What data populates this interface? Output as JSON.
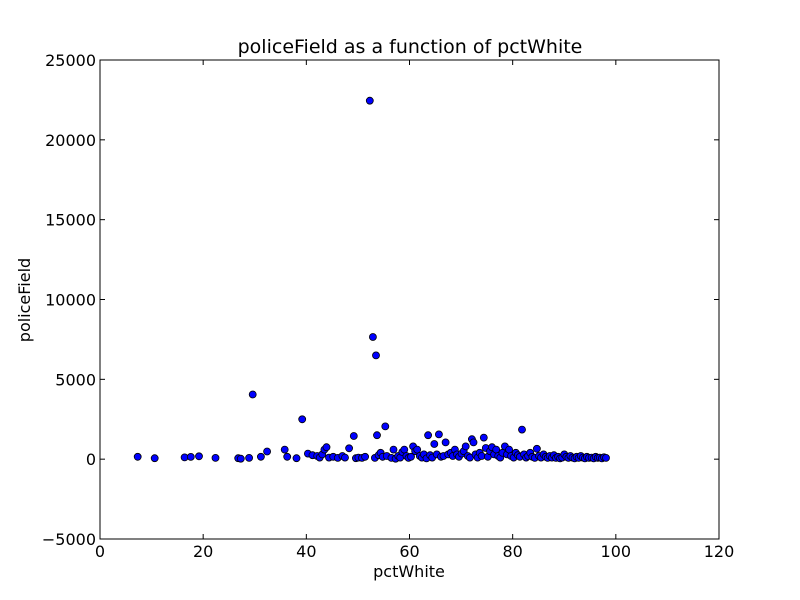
{
  "chart_data": {
    "type": "scatter",
    "title": "policeField as a function of pctWhite",
    "xlabel": "pctWhite",
    "ylabel": "policeField",
    "xlim": [
      0,
      120
    ],
    "ylim": [
      -5000,
      25000
    ],
    "xticks": [
      0,
      20,
      40,
      60,
      80,
      100,
      120
    ],
    "yticks": [
      -5000,
      0,
      5000,
      10000,
      15000,
      20000,
      25000
    ],
    "grid": false,
    "marker_color": "#0000ff",
    "marker_edge_color": "#000000",
    "series": [
      {
        "points": [
          [
            7.3,
            150
          ],
          [
            10.6,
            60
          ],
          [
            16.4,
            110
          ],
          [
            17.6,
            140
          ],
          [
            19.2,
            180
          ],
          [
            22.4,
            80
          ],
          [
            26.8,
            60
          ],
          [
            27.3,
            30
          ],
          [
            28.9,
            80
          ],
          [
            29.6,
            4050
          ],
          [
            31.2,
            150
          ],
          [
            32.4,
            480
          ],
          [
            35.8,
            600
          ],
          [
            36.3,
            150
          ],
          [
            38.1,
            60
          ],
          [
            39.2,
            2500
          ],
          [
            40.3,
            350
          ],
          [
            41.2,
            250
          ],
          [
            42.1,
            200
          ],
          [
            42.6,
            100
          ],
          [
            43.1,
            300
          ],
          [
            43.5,
            600
          ],
          [
            43.9,
            750
          ],
          [
            44.4,
            100
          ],
          [
            45.2,
            150
          ],
          [
            46.1,
            80
          ],
          [
            47.0,
            200
          ],
          [
            47.5,
            100
          ],
          [
            48.3,
            680
          ],
          [
            49.2,
            1450
          ],
          [
            49.6,
            60
          ],
          [
            50.1,
            100
          ],
          [
            50.8,
            80
          ],
          [
            51.4,
            150
          ],
          [
            52.3,
            22450
          ],
          [
            52.9,
            7650
          ],
          [
            53.3,
            80
          ],
          [
            53.5,
            6500
          ],
          [
            53.7,
            1500
          ],
          [
            54.0,
            250
          ],
          [
            54.4,
            400
          ],
          [
            54.8,
            150
          ],
          [
            55.3,
            2050
          ],
          [
            55.6,
            200
          ],
          [
            56.5,
            80
          ],
          [
            56.9,
            600
          ],
          [
            57.3,
            30
          ],
          [
            57.8,
            200
          ],
          [
            58.2,
            100
          ],
          [
            58.6,
            450
          ],
          [
            59.0,
            600
          ],
          [
            59.4,
            200
          ],
          [
            59.8,
            80
          ],
          [
            60.3,
            150
          ],
          [
            60.7,
            800
          ],
          [
            61.1,
            500
          ],
          [
            61.5,
            600
          ],
          [
            62.0,
            200
          ],
          [
            62.4,
            100
          ],
          [
            62.8,
            300
          ],
          [
            63.3,
            50
          ],
          [
            63.6,
            1500
          ],
          [
            64.0,
            250
          ],
          [
            64.4,
            100
          ],
          [
            64.8,
            950
          ],
          [
            65.3,
            300
          ],
          [
            65.7,
            1550
          ],
          [
            66.1,
            150
          ],
          [
            66.6,
            200
          ],
          [
            67.0,
            1050
          ],
          [
            67.5,
            300
          ],
          [
            68.0,
            400
          ],
          [
            68.4,
            200
          ],
          [
            68.8,
            600
          ],
          [
            69.2,
            300
          ],
          [
            69.6,
            150
          ],
          [
            70.1,
            350
          ],
          [
            70.5,
            500
          ],
          [
            70.9,
            800
          ],
          [
            71.3,
            200
          ],
          [
            71.7,
            100
          ],
          [
            72.1,
            1250
          ],
          [
            72.4,
            1050
          ],
          [
            72.8,
            300
          ],
          [
            73.2,
            100
          ],
          [
            73.6,
            400
          ],
          [
            74.0,
            200
          ],
          [
            74.4,
            1350
          ],
          [
            74.8,
            700
          ],
          [
            75.2,
            150
          ],
          [
            75.6,
            500
          ],
          [
            76.0,
            750
          ],
          [
            76.4,
            300
          ],
          [
            76.8,
            600
          ],
          [
            77.2,
            200
          ],
          [
            77.6,
            100
          ],
          [
            78.0,
            400
          ],
          [
            78.5,
            800
          ],
          [
            78.9,
            300
          ],
          [
            79.3,
            600
          ],
          [
            79.7,
            200
          ],
          [
            80.2,
            100
          ],
          [
            80.6,
            400
          ],
          [
            81.0,
            250
          ],
          [
            81.4,
            150
          ],
          [
            81.8,
            1850
          ],
          [
            82.2,
            300
          ],
          [
            82.6,
            100
          ],
          [
            83.0,
            200
          ],
          [
            83.4,
            400
          ],
          [
            83.8,
            150
          ],
          [
            84.3,
            80
          ],
          [
            84.7,
            650
          ],
          [
            85.1,
            200
          ],
          [
            85.5,
            100
          ],
          [
            86.0,
            300
          ],
          [
            86.4,
            150
          ],
          [
            86.8,
            80
          ],
          [
            87.2,
            200
          ],
          [
            87.6,
            100
          ],
          [
            88.0,
            250
          ],
          [
            88.4,
            80
          ],
          [
            88.8,
            150
          ],
          [
            89.2,
            50
          ],
          [
            89.6,
            100
          ],
          [
            90.0,
            300
          ],
          [
            90.4,
            150
          ],
          [
            90.8,
            80
          ],
          [
            91.2,
            200
          ],
          [
            91.6,
            100
          ],
          [
            92.0,
            50
          ],
          [
            92.4,
            150
          ],
          [
            92.8,
            80
          ],
          [
            93.2,
            200
          ],
          [
            93.6,
            100
          ],
          [
            94.0,
            50
          ],
          [
            94.4,
            150
          ],
          [
            94.8,
            80
          ],
          [
            95.3,
            100
          ],
          [
            95.7,
            50
          ],
          [
            96.1,
            150
          ],
          [
            96.5,
            80
          ],
          [
            96.9,
            100
          ],
          [
            97.3,
            50
          ],
          [
            97.7,
            120
          ],
          [
            98.1,
            80
          ]
        ]
      }
    ]
  }
}
